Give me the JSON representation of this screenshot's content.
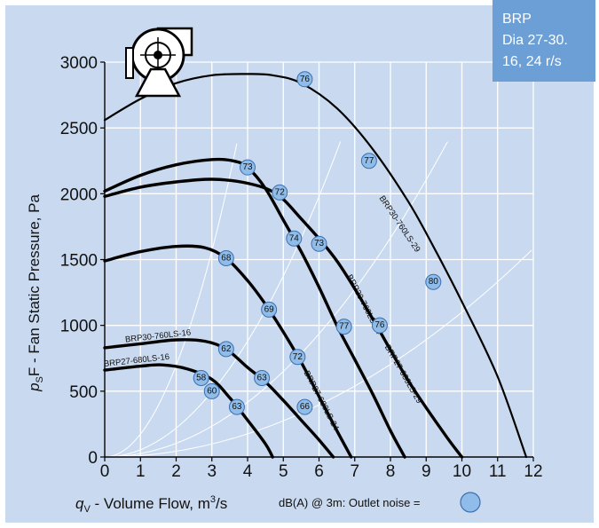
{
  "colors": {
    "background": "#c9daf0",
    "grid": "#ffffff",
    "system_line": "#ffffff",
    "curve": "#000000",
    "bubble_fill": "#8fbce8",
    "bubble_stroke": "#3d6fb0",
    "corner_box": "#6b9fd6"
  },
  "corner": {
    "line1": "BRP",
    "line2": "Dia 27-30.",
    "line3": "16, 24 r/s"
  },
  "legend": {
    "text": "dB(A) @ 3m:  Outlet noise  =",
    "marker": "outlet-noise-bubble"
  },
  "icon": "centrifugal-fan-icon",
  "chart_data": {
    "type": "line",
    "title": "",
    "xlabel": "q_V - Volume Flow, m3/s",
    "xlabel_parts": {
      "sym": "q",
      "sub": "V",
      "rest": " - Volume Flow, m",
      "sup": "3",
      "tail": "/s"
    },
    "ylabel": "pSF - Fan Static Pressure, Pa",
    "ylabel_parts": {
      "sym": "p",
      "sub": "S",
      "rest": "F - Fan Static Pressure, Pa"
    },
    "xlim": [
      0,
      12
    ],
    "ylim": [
      0,
      3000
    ],
    "xticks": [
      "0",
      "1",
      "2",
      "3",
      "4",
      "5",
      "6",
      "7",
      "8",
      "9",
      "10",
      "11",
      "12"
    ],
    "yticks": [
      "0",
      "500",
      "1000",
      "1500",
      "2000",
      "2500",
      "3000"
    ],
    "grid": true,
    "series": [
      {
        "name": "BRP30-760LS-29",
        "width": 2.2,
        "points": [
          [
            0,
            2560
          ],
          [
            1,
            2720
          ],
          [
            2,
            2840
          ],
          [
            3,
            2900
          ],
          [
            4,
            2910
          ],
          [
            4.7,
            2900
          ],
          [
            5.5,
            2840
          ],
          [
            6.5,
            2650
          ],
          [
            7.5,
            2340
          ],
          [
            8.5,
            1940
          ],
          [
            9.2,
            1600
          ],
          [
            10,
            1180
          ],
          [
            11,
            610
          ],
          [
            11.8,
            0
          ]
        ],
        "label_at": [
          8.2,
          1760
        ],
        "noise": [
          {
            "x": 5.6,
            "y": 2870,
            "db": "76"
          },
          {
            "x": 7.4,
            "y": 2250,
            "db": "77"
          },
          {
            "x": 9.2,
            "y": 1330,
            "db": "80"
          }
        ]
      },
      {
        "name": "BRP30-760LS-24",
        "width": 3.4,
        "points": [
          [
            0,
            2020
          ],
          [
            1,
            2140
          ],
          [
            2,
            2220
          ],
          [
            3,
            2260
          ],
          [
            3.6,
            2250
          ],
          [
            4,
            2200
          ],
          [
            4.5,
            2040
          ],
          [
            5,
            1800
          ],
          [
            5.5,
            1560
          ],
          [
            6,
            1290
          ],
          [
            6.5,
            1000
          ],
          [
            7,
            740
          ],
          [
            7.5,
            480
          ],
          [
            8,
            200
          ],
          [
            8.4,
            0
          ]
        ],
        "label_at": [
          7.2,
          1150
        ],
        "noise": [
          {
            "x": 4.0,
            "y": 2200,
            "db": "73"
          },
          {
            "x": 5.3,
            "y": 1660,
            "db": "74"
          },
          {
            "x": 6.7,
            "y": 990,
            "db": "77"
          }
        ]
      },
      {
        "name": "BRP27-680LS-29",
        "width": 3.4,
        "points": [
          [
            0,
            1980
          ],
          [
            1,
            2050
          ],
          [
            2,
            2090
          ],
          [
            3,
            2110
          ],
          [
            4,
            2080
          ],
          [
            4.8,
            2000
          ],
          [
            5.5,
            1810
          ],
          [
            6.5,
            1490
          ],
          [
            7.5,
            1050
          ],
          [
            8.5,
            580
          ],
          [
            9.5,
            180
          ],
          [
            10,
            0
          ]
        ],
        "label_at": [
          8.3,
          620
        ],
        "noise": [
          {
            "x": 4.9,
            "y": 2010,
            "db": "72"
          },
          {
            "x": 6.0,
            "y": 1620,
            "db": "73"
          },
          {
            "x": 7.7,
            "y": 1000,
            "db": "76"
          }
        ]
      },
      {
        "name": "BRP27-680LS-24",
        "width": 3.4,
        "points": [
          [
            0,
            1490
          ],
          [
            1,
            1560
          ],
          [
            2,
            1600
          ],
          [
            2.8,
            1590
          ],
          [
            3.4,
            1510
          ],
          [
            4,
            1340
          ],
          [
            4.5,
            1160
          ],
          [
            5,
            950
          ],
          [
            5.5,
            720
          ],
          [
            6,
            460
          ],
          [
            6.5,
            200
          ],
          [
            6.9,
            0
          ]
        ],
        "label_at": [
          6.0,
          420
        ],
        "noise": [
          {
            "x": 3.4,
            "y": 1510,
            "db": "68"
          },
          {
            "x": 4.6,
            "y": 1120,
            "db": "69"
          },
          {
            "x": 5.4,
            "y": 760,
            "db": "72"
          }
        ]
      },
      {
        "name": "BRP30-760LS-16",
        "width": 3.4,
        "points": [
          [
            0,
            830
          ],
          [
            1,
            860
          ],
          [
            2,
            890
          ],
          [
            2.8,
            880
          ],
          [
            3.4,
            820
          ],
          [
            4,
            680
          ],
          [
            4.5,
            570
          ],
          [
            5,
            430
          ],
          [
            5.5,
            280
          ],
          [
            6,
            130
          ],
          [
            6.4,
            0
          ]
        ],
        "label_at": [
          1.5,
          900
        ],
        "noise": [
          {
            "x": 3.4,
            "y": 820,
            "db": "62"
          },
          {
            "x": 4.4,
            "y": 600,
            "db": "63"
          },
          {
            "x": 5.6,
            "y": 380,
            "db": "66"
          }
        ]
      },
      {
        "name": "BRP27-680LS-16",
        "width": 3.4,
        "points": [
          [
            0,
            660
          ],
          [
            1,
            690
          ],
          [
            1.6,
            700
          ],
          [
            2.3,
            670
          ],
          [
            3,
            590
          ],
          [
            3.5,
            450
          ],
          [
            4,
            280
          ],
          [
            4.5,
            100
          ],
          [
            4.7,
            0
          ]
        ],
        "label_at": [
          0.9,
          715
        ],
        "noise": [
          {
            "x": 2.7,
            "y": 600,
            "db": "58"
          },
          {
            "x": 3.0,
            "y": 500,
            "db": "60"
          },
          {
            "x": 3.7,
            "y": 380,
            "db": "63"
          }
        ]
      }
    ],
    "system_lines": [
      {
        "k": 174
      },
      {
        "k": 55
      },
      {
        "k": 26
      },
      {
        "k": 11
      }
    ]
  }
}
